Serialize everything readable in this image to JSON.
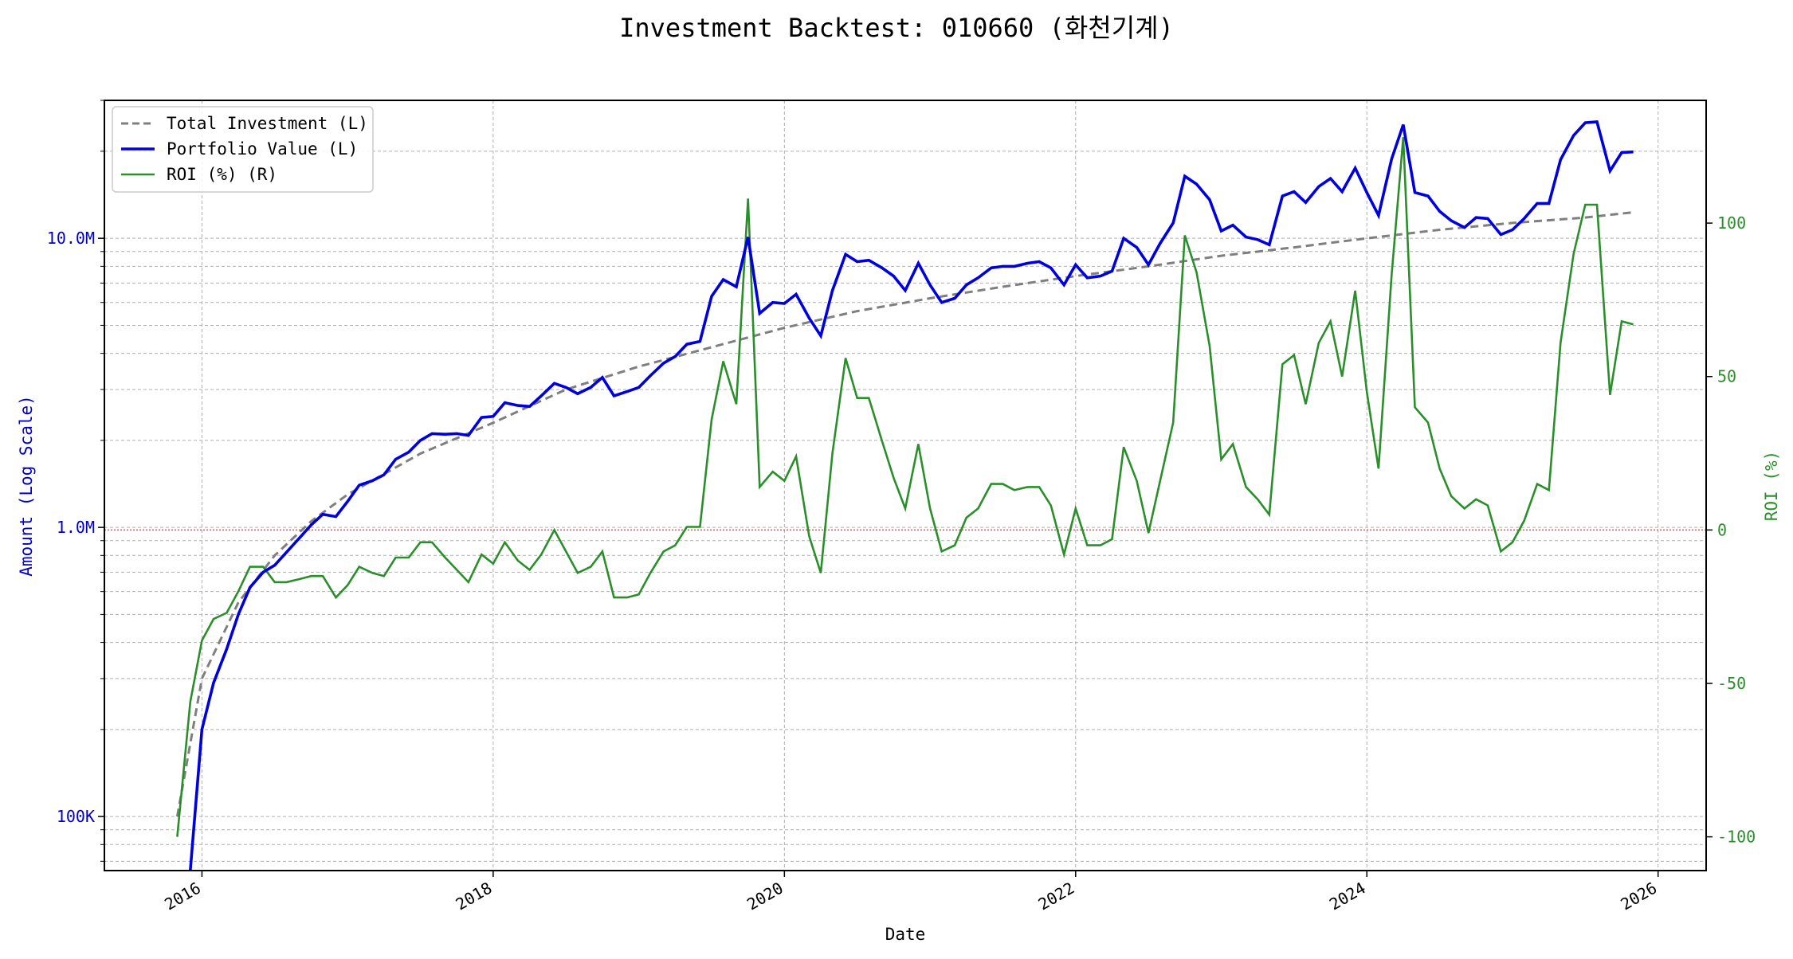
{
  "chart_data": {
    "type": "line",
    "title": "Investment Backtest: 010660 (화천기계)",
    "xlabel": "Date",
    "ylabel_left": "Amount (Log Scale)",
    "ylabel_right": "ROI (%)",
    "x_ticks": [
      "2016",
      "2018",
      "2020",
      "2022",
      "2024",
      "2026"
    ],
    "y_left_scale": "log",
    "y_left_ticks": [
      "100K",
      "1.0M",
      "10.0M"
    ],
    "y_left_range": [
      65000,
      30000000
    ],
    "y_right_ticks": [
      "-100",
      "-50",
      "0",
      "50",
      "100"
    ],
    "y_right_range": [
      -111,
      140
    ],
    "x_range": [
      2015.33,
      2026.33
    ],
    "grid": true,
    "legend_position": "top-left",
    "reference_line": {
      "axis": "right",
      "value": 0,
      "color": "#e05050",
      "style": "dotted"
    },
    "colors": {
      "total": "#7f7f7f",
      "portfolio": "#0000dd",
      "roi": "#2a8f2a"
    },
    "series": [
      {
        "name": "Total Investment (L)",
        "axis": "left",
        "style": "dashed",
        "x": [
          2015.83,
          2016.0,
          2016.25,
          2016.5,
          2016.75,
          2017.0,
          2017.5,
          2018.0,
          2018.5,
          2019.0,
          2019.5,
          2020.0,
          2020.5,
          2021.0,
          2021.5,
          2022.0,
          2022.5,
          2023.0,
          2023.5,
          2024.0,
          2024.5,
          2025.0,
          2025.5,
          2025.83
        ],
        "y": [
          100000,
          300000,
          550000,
          800000,
          1050000,
          1300000,
          1800000,
          2300000,
          3000000,
          3600000,
          4200000,
          4900000,
          5600000,
          6200000,
          6800000,
          7400000,
          8000000,
          8700000,
          9300000,
          10000000,
          10700000,
          11300000,
          11800000,
          12300000
        ]
      },
      {
        "name": "Portfolio Value (L)",
        "axis": "left",
        "style": "solid",
        "x": [
          2015.92,
          2016.0,
          2016.08,
          2016.17,
          2016.25,
          2016.33,
          2016.42,
          2016.5,
          2016.58,
          2016.67,
          2016.75,
          2016.83,
          2016.92,
          2017.0,
          2017.08,
          2017.17,
          2017.25,
          2017.33,
          2017.42,
          2017.5,
          2017.58,
          2017.67,
          2017.75,
          2017.83,
          2017.92,
          2018.0,
          2018.08,
          2018.17,
          2018.25,
          2018.33,
          2018.42,
          2018.5,
          2018.58,
          2018.67,
          2018.75,
          2018.83,
          2018.92,
          2019.0,
          2019.08,
          2019.17,
          2019.25,
          2019.33,
          2019.42,
          2019.5,
          2019.58,
          2019.67,
          2019.75,
          2019.83,
          2019.92,
          2020.0,
          2020.08,
          2020.17,
          2020.25,
          2020.33,
          2020.42,
          2020.5,
          2020.58,
          2020.67,
          2020.75,
          2020.83,
          2020.92,
          2021.0,
          2021.08,
          2021.17,
          2021.25,
          2021.33,
          2021.42,
          2021.5,
          2021.58,
          2021.67,
          2021.75,
          2021.83,
          2021.92,
          2022.0,
          2022.08,
          2022.17,
          2022.25,
          2022.33,
          2022.42,
          2022.5,
          2022.58,
          2022.67,
          2022.75,
          2022.83,
          2022.92,
          2023.0,
          2023.08,
          2023.17,
          2023.25,
          2023.33,
          2023.42,
          2023.5,
          2023.58,
          2023.67,
          2023.75,
          2023.83,
          2023.92,
          2024.0,
          2024.08,
          2024.17,
          2024.25,
          2024.33,
          2024.42,
          2024.5,
          2024.58,
          2024.67,
          2024.75,
          2024.83,
          2024.92,
          2025.0,
          2025.08,
          2025.17,
          2025.25,
          2025.33,
          2025.42,
          2025.5,
          2025.58,
          2025.67,
          2025.75,
          2025.83
        ],
        "y": [
          50000,
          200000,
          290000,
          380000,
          500000,
          620000,
          700000,
          740000,
          820000,
          920000,
          1020000,
          1110000,
          1090000,
          1230000,
          1400000,
          1450000,
          1520000,
          1720000,
          1820000,
          2000000,
          2110000,
          2100000,
          2110000,
          2080000,
          2400000,
          2420000,
          2700000,
          2640000,
          2620000,
          2850000,
          3150000,
          3050000,
          2900000,
          3050000,
          3300000,
          2850000,
          2950000,
          3050000,
          3350000,
          3700000,
          3900000,
          4300000,
          4400000,
          6300000,
          7200000,
          6800000,
          10100000,
          5500000,
          6000000,
          5950000,
          6400000,
          5300000,
          4600000,
          6600000,
          8800000,
          8300000,
          8400000,
          7900000,
          7400000,
          6600000,
          8200000,
          6900000,
          6000000,
          6200000,
          6900000,
          7300000,
          7900000,
          8000000,
          8000000,
          8200000,
          8300000,
          7900000,
          6900000,
          8100000,
          7300000,
          7400000,
          7700000,
          10000000,
          9300000,
          8100000,
          9600000,
          11300000,
          16400000,
          15400000,
          13600000,
          10600000,
          11100000,
          10100000,
          9900000,
          9500000,
          14000000,
          14500000,
          13300000,
          15100000,
          16100000,
          14500000,
          17500000,
          14400000,
          12000000,
          18800000,
          24700000,
          14400000,
          14000000,
          12400000,
          11500000,
          10900000,
          11800000,
          11700000,
          10300000,
          10700000,
          11700000,
          13200000,
          13200000,
          18700000,
          22700000,
          25100000,
          25300000,
          17100000,
          19800000,
          19900000
        ]
      },
      {
        "name": "ROI (%) (R)",
        "axis": "right",
        "style": "solid",
        "x": [
          2015.83,
          2015.92,
          2016.0,
          2016.08,
          2016.17,
          2016.25,
          2016.33,
          2016.42,
          2016.5,
          2016.58,
          2016.67,
          2016.75,
          2016.83,
          2016.92,
          2017.0,
          2017.08,
          2017.17,
          2017.25,
          2017.33,
          2017.42,
          2017.5,
          2017.58,
          2017.67,
          2017.75,
          2017.83,
          2017.92,
          2018.0,
          2018.08,
          2018.17,
          2018.25,
          2018.33,
          2018.42,
          2018.5,
          2018.58,
          2018.67,
          2018.75,
          2018.83,
          2018.92,
          2019.0,
          2019.08,
          2019.17,
          2019.25,
          2019.33,
          2019.42,
          2019.5,
          2019.58,
          2019.67,
          2019.75,
          2019.83,
          2019.92,
          2020.0,
          2020.08,
          2020.17,
          2020.25,
          2020.33,
          2020.42,
          2020.5,
          2020.58,
          2020.67,
          2020.75,
          2020.83,
          2020.92,
          2021.0,
          2021.08,
          2021.17,
          2021.25,
          2021.33,
          2021.42,
          2021.5,
          2021.58,
          2021.67,
          2021.75,
          2021.83,
          2021.92,
          2022.0,
          2022.08,
          2022.17,
          2022.25,
          2022.33,
          2022.42,
          2022.5,
          2022.58,
          2022.67,
          2022.75,
          2022.83,
          2022.92,
          2023.0,
          2023.08,
          2023.17,
          2023.25,
          2023.33,
          2023.42,
          2023.5,
          2023.58,
          2023.67,
          2023.75,
          2023.83,
          2023.92,
          2024.0,
          2024.08,
          2024.17,
          2024.25,
          2024.33,
          2024.42,
          2024.5,
          2024.58,
          2024.67,
          2024.75,
          2024.83,
          2024.92,
          2025.0,
          2025.08,
          2025.17,
          2025.25,
          2025.33,
          2025.42,
          2025.5,
          2025.58,
          2025.67,
          2025.75,
          2025.83
        ],
        "y": [
          -100,
          -56,
          -36,
          -29,
          -27,
          -20,
          -12,
          -12,
          -17,
          -17,
          -16,
          -15,
          -15,
          -22,
          -18,
          -12,
          -14,
          -15,
          -9,
          -9,
          -4,
          -4,
          -9,
          -13,
          -17,
          -8,
          -11,
          -4,
          -10,
          -13,
          -8,
          0,
          -7,
          -14,
          -12,
          -7,
          -22,
          -22,
          -21,
          -14,
          -7,
          -5,
          1,
          1,
          36,
          55,
          41,
          108,
          14,
          19,
          16,
          24,
          -2,
          -14,
          25,
          56,
          43,
          43,
          29,
          17,
          7,
          28,
          7,
          -7,
          -5,
          4,
          7,
          15,
          15,
          13,
          14,
          14,
          8,
          -8,
          7,
          -5,
          -5,
          -3,
          27,
          16,
          -1,
          16,
          35,
          96,
          84,
          60,
          23,
          28,
          14,
          10,
          5,
          54,
          57,
          41,
          61,
          68,
          50,
          78,
          45,
          20,
          83,
          128,
          40,
          35,
          20,
          11,
          7,
          10,
          8,
          -7,
          -4,
          3,
          15,
          13,
          61,
          90,
          106,
          106,
          44,
          68,
          67
        ]
      }
    ]
  }
}
